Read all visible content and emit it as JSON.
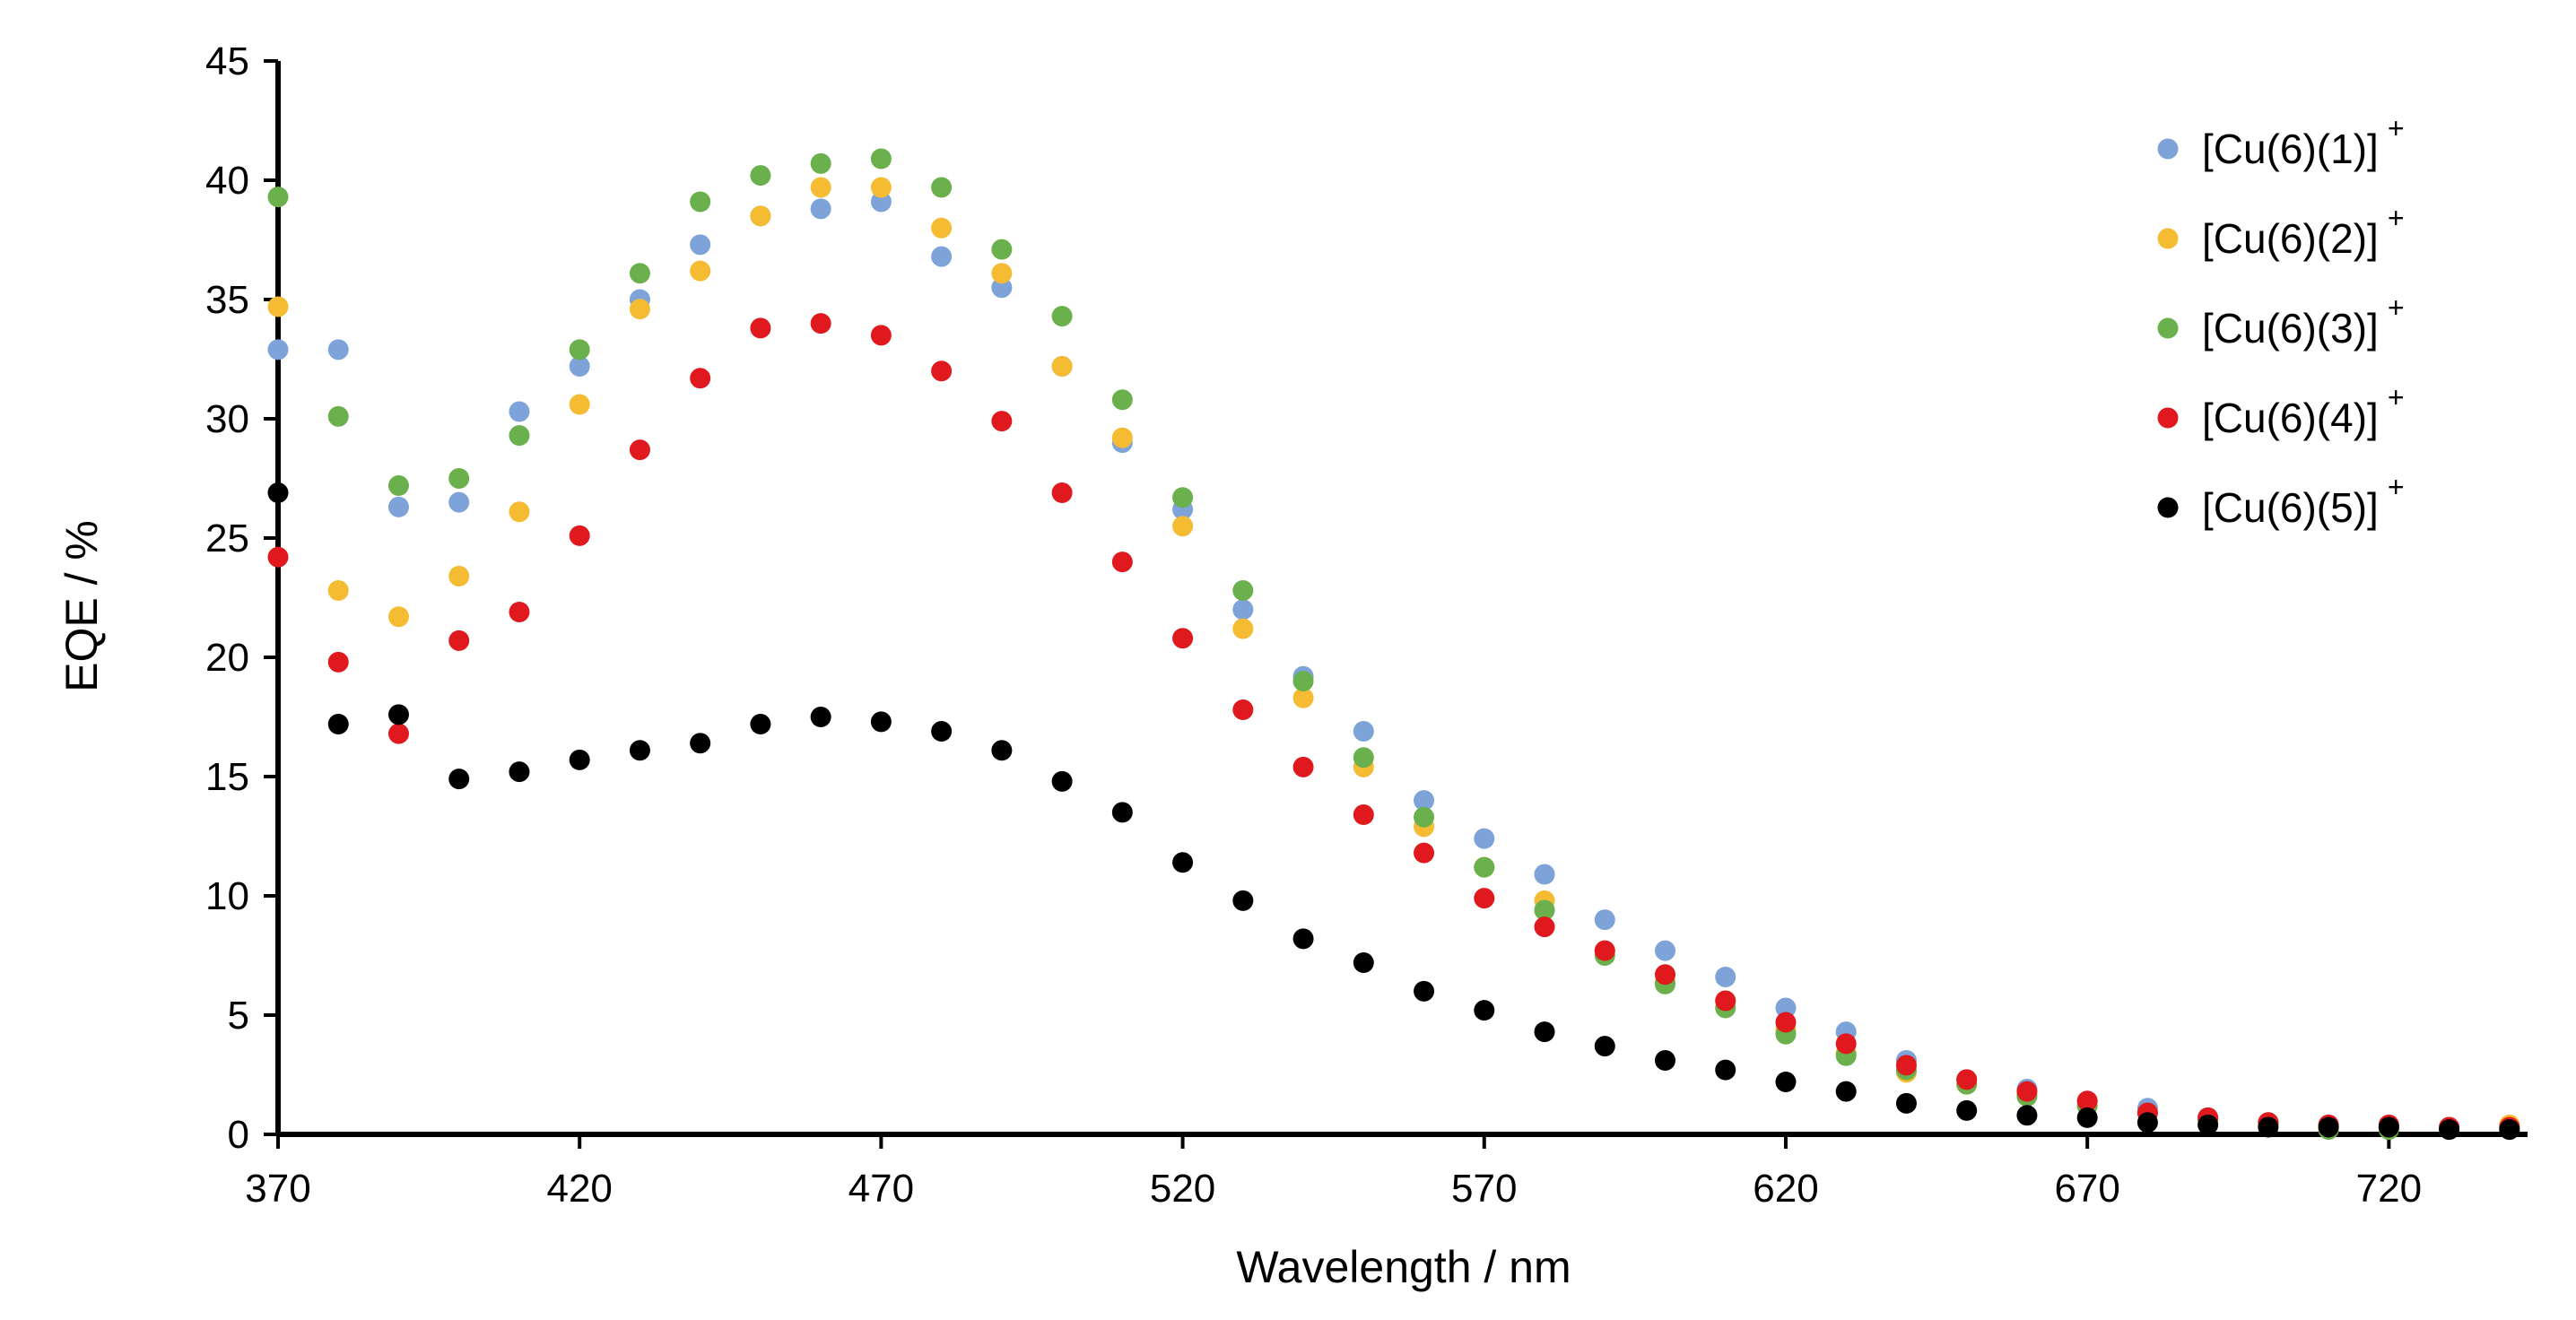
{
  "chart_data": {
    "type": "scatter",
    "title": "",
    "xlabel": "Wavelength / nm",
    "ylabel": "EQE  /  %",
    "xlim": [
      370,
      743
    ],
    "ylim": [
      0,
      45
    ],
    "xticks": [
      "370",
      "420",
      "470",
      "520",
      "570",
      "620",
      "670",
      "720"
    ],
    "yticks": [
      "0",
      "5",
      "10",
      "15",
      "20",
      "25",
      "30",
      "35",
      "40",
      "45"
    ],
    "legend_position": "top-right",
    "grid": false,
    "x": [
      370,
      380,
      390,
      400,
      410,
      420,
      430,
      440,
      450,
      460,
      470,
      480,
      490,
      500,
      510,
      520,
      530,
      540,
      550,
      560,
      570,
      580,
      590,
      600,
      610,
      620,
      630,
      640,
      650,
      660,
      670,
      680,
      690,
      700,
      710,
      720,
      730,
      740
    ],
    "series": [
      {
        "name": "[Cu(6)(1)]",
        "sup": "+",
        "color": "#7da3d9",
        "values": [
          32.9,
          32.9,
          26.3,
          26.5,
          30.3,
          32.2,
          35.0,
          37.3,
          38.5,
          38.8,
          39.1,
          36.8,
          35.5,
          32.2,
          29.0,
          26.2,
          22.0,
          19.2,
          16.9,
          14.0,
          12.4,
          10.9,
          9.0,
          7.7,
          6.6,
          5.3,
          4.3,
          3.1,
          2.3,
          1.9,
          1.4,
          1.1,
          0.7,
          0.5,
          0.4,
          0.3,
          0.3,
          0.3
        ]
      },
      {
        "name": "[Cu(6)(2)]",
        "sup": "+",
        "color": "#f5bc33",
        "values": [
          34.7,
          22.8,
          21.7,
          23.4,
          26.1,
          30.6,
          34.6,
          36.2,
          38.5,
          39.7,
          39.7,
          38.0,
          36.1,
          32.2,
          29.2,
          25.5,
          21.2,
          18.3,
          15.4,
          12.9,
          11.2,
          9.8,
          7.7,
          6.4,
          5.6,
          4.4,
          3.4,
          2.6,
          2.1,
          1.6,
          1.2,
          0.9,
          0.6,
          0.5,
          0.3,
          0.3,
          0.3,
          0.4
        ]
      },
      {
        "name": "[Cu(6)(3)]",
        "sup": "+",
        "color": "#6ab04c",
        "values": [
          39.3,
          30.1,
          27.2,
          27.5,
          29.3,
          32.9,
          36.1,
          39.1,
          40.2,
          40.7,
          40.9,
          39.7,
          37.1,
          34.3,
          30.8,
          26.7,
          22.8,
          19.0,
          15.8,
          13.3,
          11.2,
          9.4,
          7.5,
          6.3,
          5.3,
          4.2,
          3.3,
          2.7,
          2.1,
          1.6,
          1.2,
          0.9,
          0.6,
          0.4,
          0.2,
          0.2,
          0.2,
          0.2
        ]
      },
      {
        "name": "[Cu(6)(4)]",
        "sup": "+",
        "color": "#e0191e",
        "values": [
          24.2,
          19.8,
          16.8,
          20.7,
          21.9,
          25.1,
          28.7,
          31.7,
          33.8,
          34.0,
          33.5,
          32.0,
          29.9,
          26.9,
          24.0,
          20.8,
          17.8,
          15.4,
          13.4,
          11.8,
          9.9,
          8.7,
          7.7,
          6.7,
          5.6,
          4.7,
          3.8,
          2.9,
          2.3,
          1.8,
          1.4,
          0.9,
          0.7,
          0.5,
          0.4,
          0.4,
          0.3,
          0.3
        ]
      },
      {
        "name": "[Cu(6)(5)]",
        "sup": "+",
        "color": "#000000",
        "values": [
          26.9,
          17.2,
          17.6,
          14.9,
          15.2,
          15.7,
          16.1,
          16.4,
          17.2,
          17.5,
          17.3,
          16.9,
          16.1,
          14.8,
          13.5,
          11.4,
          9.8,
          8.2,
          7.2,
          6.0,
          5.2,
          4.3,
          3.7,
          3.1,
          2.7,
          2.2,
          1.8,
          1.3,
          1.0,
          0.8,
          0.7,
          0.5,
          0.4,
          0.3,
          0.3,
          0.3,
          0.2,
          0.2
        ]
      }
    ]
  }
}
